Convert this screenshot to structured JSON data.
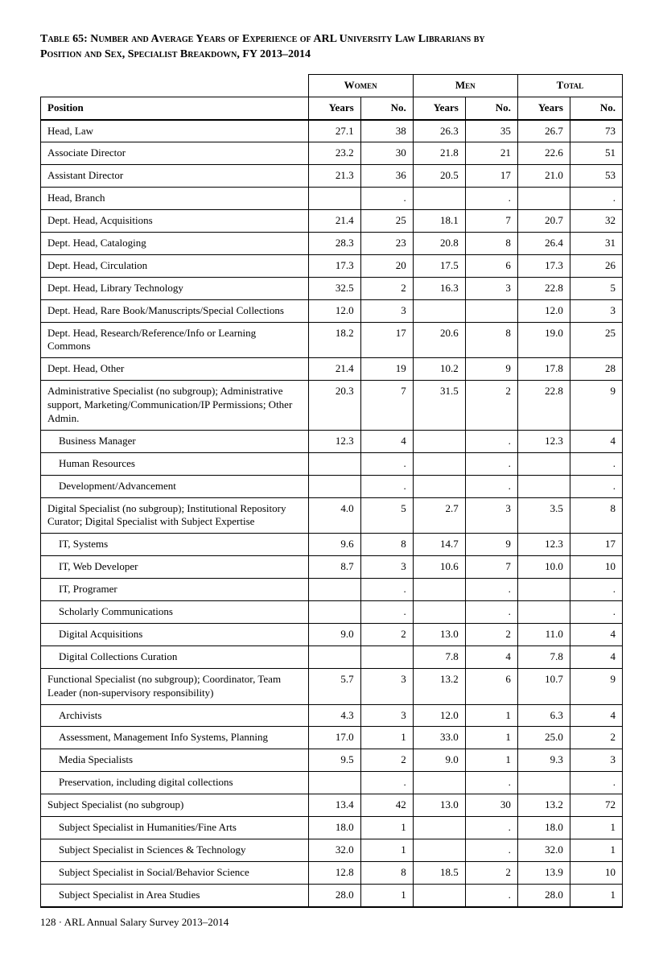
{
  "title_line1": "Table 65: Number and Average Years of Experience of ARL University Law Librarians by",
  "title_line2": "Position and Sex, Specialist Breakdown, FY 2013–2014",
  "group_headers": {
    "women": "Women",
    "men": "Men",
    "total": "Total"
  },
  "sub_headers": {
    "position": "Position",
    "years": "Years",
    "no": "No."
  },
  "footer": "128 · ARL Annual Salary Survey 2013–2014",
  "rows": [
    {
      "pos": "Head, Law",
      "wy": "27.1",
      "wn": "38",
      "my": "26.3",
      "mn": "35",
      "ty": "26.7",
      "tn": "73"
    },
    {
      "pos": "Associate Director",
      "wy": "23.2",
      "wn": "30",
      "my": "21.8",
      "mn": "21",
      "ty": "22.6",
      "tn": "51"
    },
    {
      "pos": "Assistant Director",
      "wy": "21.3",
      "wn": "36",
      "my": "20.5",
      "mn": "17",
      "ty": "21.0",
      "tn": "53"
    },
    {
      "pos": "Head, Branch",
      "wy": "",
      "wn": ".",
      "my": "",
      "mn": ".",
      "ty": "",
      "tn": "."
    },
    {
      "pos": "Dept. Head, Acquisitions",
      "wy": "21.4",
      "wn": "25",
      "my": "18.1",
      "mn": "7",
      "ty": "20.7",
      "tn": "32"
    },
    {
      "pos": "Dept. Head, Cataloging",
      "wy": "28.3",
      "wn": "23",
      "my": "20.8",
      "mn": "8",
      "ty": "26.4",
      "tn": "31"
    },
    {
      "pos": "Dept. Head, Circulation",
      "wy": "17.3",
      "wn": "20",
      "my": "17.5",
      "mn": "6",
      "ty": "17.3",
      "tn": "26"
    },
    {
      "pos": "Dept. Head, Library Technology",
      "wy": "32.5",
      "wn": "2",
      "my": "16.3",
      "mn": "3",
      "ty": "22.8",
      "tn": "5"
    },
    {
      "pos": "Dept. Head, Rare Book/Manuscripts/Special Collections",
      "wy": "12.0",
      "wn": "3",
      "my": "",
      "mn": "",
      "ty": "12.0",
      "tn": "3"
    },
    {
      "pos": "Dept. Head, Research/Reference/Info or Learning Commons",
      "wy": "18.2",
      "wn": "17",
      "my": "20.6",
      "mn": "8",
      "ty": "19.0",
      "tn": "25"
    },
    {
      "pos": "Dept. Head, Other",
      "wy": "21.4",
      "wn": "19",
      "my": "10.2",
      "mn": "9",
      "ty": "17.8",
      "tn": "28"
    },
    {
      "pos": "Administrative Specialist (no subgroup); Administrative support, Marketing/Communication/IP Permissions; Other Admin.",
      "wy": "20.3",
      "wn": "7",
      "my": "31.5",
      "mn": "2",
      "ty": "22.8",
      "tn": "9"
    },
    {
      "pos": "Business Manager",
      "indent": true,
      "wy": "12.3",
      "wn": "4",
      "my": "",
      "mn": ".",
      "ty": "12.3",
      "tn": "4"
    },
    {
      "pos": "Human Resources",
      "indent": true,
      "wy": "",
      "wn": ".",
      "my": "",
      "mn": ".",
      "ty": "",
      "tn": "."
    },
    {
      "pos": "Development/Advancement",
      "indent": true,
      "wy": "",
      "wn": ".",
      "my": "",
      "mn": ".",
      "ty": "",
      "tn": "."
    },
    {
      "pos": "Digital Specialist (no subgroup); Institutional Repository Curator; Digital Specialist with Subject Expertise",
      "wy": "4.0",
      "wn": "5",
      "my": "2.7",
      "mn": "3",
      "ty": "3.5",
      "tn": "8"
    },
    {
      "pos": "IT, Systems",
      "indent": true,
      "wy": "9.6",
      "wn": "8",
      "my": "14.7",
      "mn": "9",
      "ty": "12.3",
      "tn": "17"
    },
    {
      "pos": "IT, Web Developer",
      "indent": true,
      "wy": "8.7",
      "wn": "3",
      "my": "10.6",
      "mn": "7",
      "ty": "10.0",
      "tn": "10"
    },
    {
      "pos": "IT, Programer",
      "indent": true,
      "wy": "",
      "wn": ".",
      "my": "",
      "mn": ".",
      "ty": "",
      "tn": "."
    },
    {
      "pos": "Scholarly Communications",
      "indent": true,
      "wy": "",
      "wn": ".",
      "my": "",
      "mn": ".",
      "ty": "",
      "tn": "."
    },
    {
      "pos": "Digital Acquisitions",
      "indent": true,
      "wy": "9.0",
      "wn": "2",
      "my": "13.0",
      "mn": "2",
      "ty": "11.0",
      "tn": "4"
    },
    {
      "pos": "Digital Collections Curation",
      "indent": true,
      "wy": "",
      "wn": "",
      "my": "7.8",
      "mn": "4",
      "ty": "7.8",
      "tn": "4"
    },
    {
      "pos": "Functional Specialist (no subgroup); Coordinator, Team Leader (non-supervisory responsibility)",
      "wy": "5.7",
      "wn": "3",
      "my": "13.2",
      "mn": "6",
      "ty": "10.7",
      "tn": "9"
    },
    {
      "pos": "Archivists",
      "indent": true,
      "wy": "4.3",
      "wn": "3",
      "my": "12.0",
      "mn": "1",
      "ty": "6.3",
      "tn": "4"
    },
    {
      "pos": "Assessment, Management Info Systems, Planning",
      "indent": true,
      "wy": "17.0",
      "wn": "1",
      "my": "33.0",
      "mn": "1",
      "ty": "25.0",
      "tn": "2"
    },
    {
      "pos": "Media Specialists",
      "indent": true,
      "wy": "9.5",
      "wn": "2",
      "my": "9.0",
      "mn": "1",
      "ty": "9.3",
      "tn": "3"
    },
    {
      "pos": "Preservation, including digital collections",
      "indent": true,
      "wy": "",
      "wn": ".",
      "my": "",
      "mn": ".",
      "ty": "",
      "tn": "."
    },
    {
      "pos": "Subject Specialist (no subgroup)",
      "wy": "13.4",
      "wn": "42",
      "my": "13.0",
      "mn": "30",
      "ty": "13.2",
      "tn": "72"
    },
    {
      "pos": "Subject Specialist in Humanities/Fine Arts",
      "indent": true,
      "wy": "18.0",
      "wn": "1",
      "my": "",
      "mn": ".",
      "ty": "18.0",
      "tn": "1"
    },
    {
      "pos": "Subject Specialist in Sciences & Technology",
      "indent": true,
      "wy": "32.0",
      "wn": "1",
      "my": "",
      "mn": ".",
      "ty": "32.0",
      "tn": "1"
    },
    {
      "pos": "Subject Specialist in Social/Behavior Science",
      "indent": true,
      "wy": "12.8",
      "wn": "8",
      "my": "18.5",
      "mn": "2",
      "ty": "13.9",
      "tn": "10"
    },
    {
      "pos": "Subject Specialist in Area Studies",
      "indent": true,
      "last": true,
      "wy": "28.0",
      "wn": "1",
      "my": "",
      "mn": ".",
      "ty": "28.0",
      "tn": "1"
    }
  ]
}
